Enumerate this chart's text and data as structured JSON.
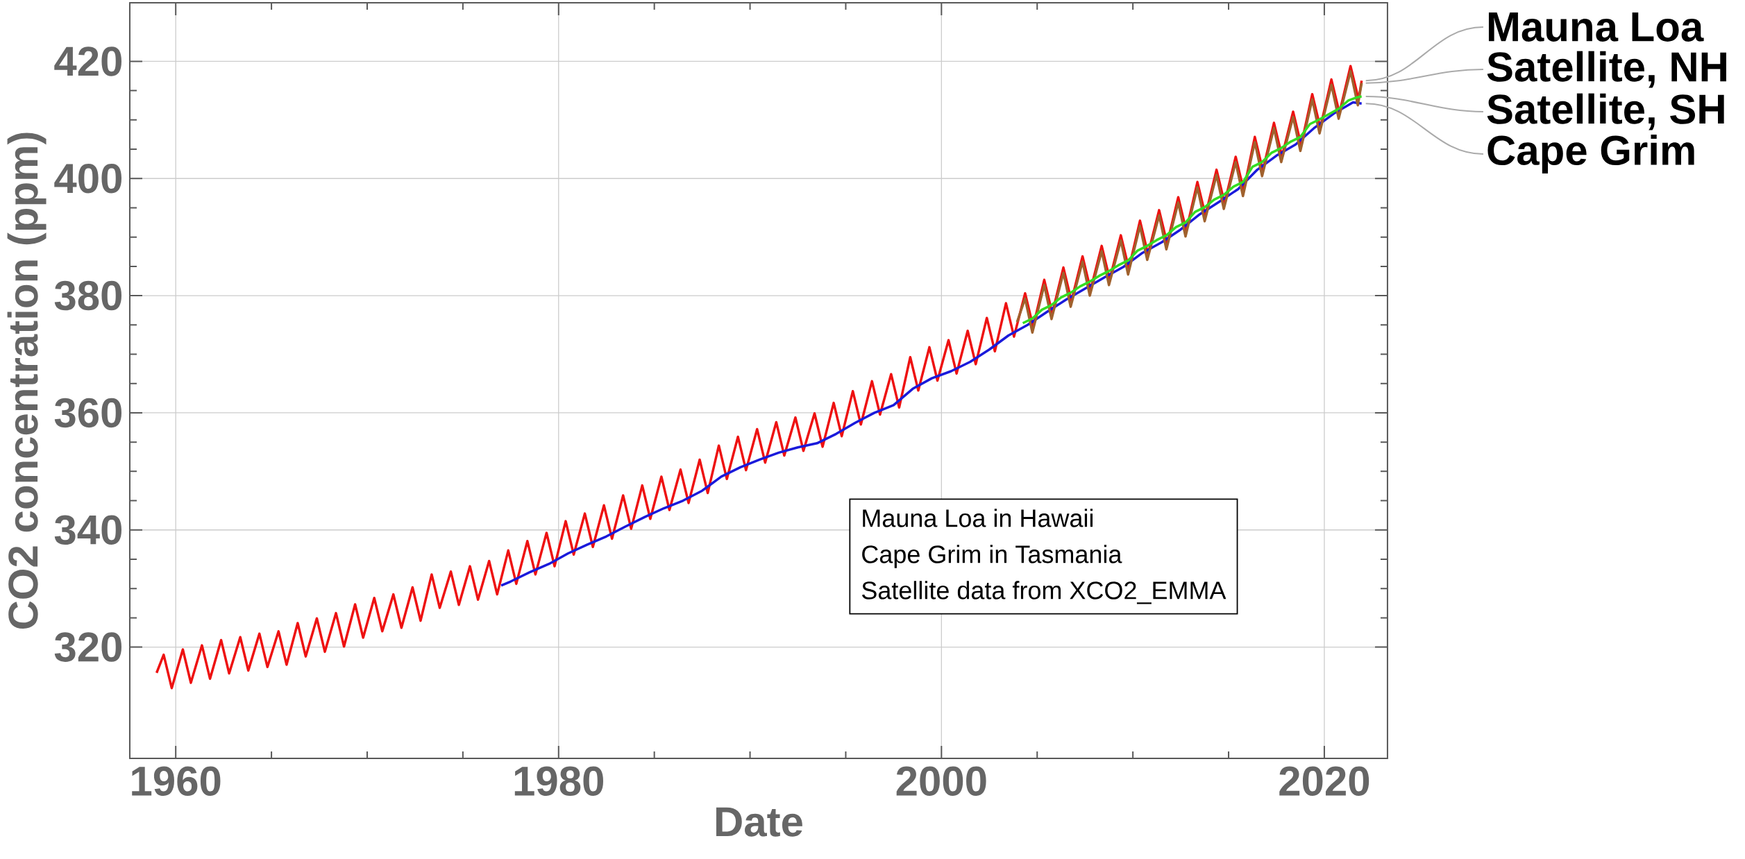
{
  "chart_data": {
    "type": "line",
    "xlabel": "Date",
    "ylabel": "CO2 concentration (ppm)",
    "xlim": [
      1957.6,
      2023.3
    ],
    "ylim": [
      301,
      430
    ],
    "xticks": [
      1960,
      1980,
      2000,
      2020
    ],
    "yticks": [
      320,
      340,
      360,
      380,
      400,
      420
    ],
    "grid": true,
    "legend": false,
    "marker": "none",
    "line_style": "solid",
    "annotations": [
      "Mauna Loa in Hawaii",
      "Cape Grim in Tasmania",
      "Satellite data from XCO2_EMMA"
    ],
    "series": [
      {
        "name": "Mauna Loa",
        "color": "#ee1111",
        "x": [
          1959.0,
          1959.37,
          1959.79,
          1960.37,
          1960.79,
          1961.37,
          1961.79,
          1962.37,
          1962.79,
          1963.37,
          1963.79,
          1964.37,
          1964.79,
          1965.37,
          1965.79,
          1966.37,
          1966.79,
          1967.37,
          1967.79,
          1968.37,
          1968.79,
          1969.37,
          1969.79,
          1970.37,
          1970.79,
          1971.37,
          1971.79,
          1972.37,
          1972.79,
          1973.37,
          1973.79,
          1974.37,
          1974.79,
          1975.37,
          1975.79,
          1976.37,
          1976.79,
          1977.37,
          1977.79,
          1978.37,
          1978.79,
          1979.37,
          1979.79,
          1980.37,
          1980.79,
          1981.37,
          1981.79,
          1982.37,
          1982.79,
          1983.37,
          1983.79,
          1984.37,
          1984.79,
          1985.37,
          1985.79,
          1986.37,
          1986.79,
          1987.37,
          1987.79,
          1988.37,
          1988.79,
          1989.37,
          1989.79,
          1990.37,
          1990.79,
          1991.37,
          1991.79,
          1992.37,
          1992.79,
          1993.37,
          1993.79,
          1994.37,
          1994.79,
          1995.37,
          1995.79,
          1996.37,
          1996.79,
          1997.37,
          1997.79,
          1998.37,
          1998.79,
          1999.37,
          1999.79,
          2000.37,
          2000.79,
          2001.37,
          2001.79,
          2002.37,
          2002.79,
          2003.37,
          2003.79,
          2004.37,
          2004.79,
          2005.37,
          2005.79,
          2006.37,
          2006.79,
          2007.37,
          2007.79,
          2008.37,
          2008.79,
          2009.37,
          2009.79,
          2010.37,
          2010.79,
          2011.37,
          2011.79,
          2012.37,
          2012.79,
          2013.37,
          2013.79,
          2014.37,
          2014.79,
          2015.37,
          2015.79,
          2016.37,
          2016.79,
          2017.37,
          2017.79,
          2018.37,
          2018.79,
          2019.37,
          2019.79,
          2020.37,
          2020.79,
          2021.37,
          2021.79,
          2021.95
        ],
        "values": [
          315.6,
          318.7,
          313.0,
          319.6,
          313.9,
          320.3,
          314.6,
          321.2,
          315.5,
          321.7,
          316.0,
          322.3,
          316.6,
          322.7,
          317.0,
          324.1,
          318.4,
          324.9,
          319.2,
          325.8,
          320.1,
          327.3,
          321.6,
          328.4,
          322.7,
          329.0,
          323.3,
          330.2,
          324.5,
          332.4,
          326.7,
          332.9,
          327.2,
          333.8,
          328.1,
          334.7,
          329.0,
          336.5,
          330.8,
          338.1,
          332.4,
          339.5,
          333.8,
          341.5,
          335.8,
          342.8,
          337.1,
          344.2,
          338.5,
          345.9,
          340.2,
          347.6,
          341.9,
          349.1,
          343.4,
          350.3,
          344.6,
          352.0,
          346.3,
          354.4,
          348.7,
          355.9,
          350.2,
          357.2,
          351.5,
          358.4,
          352.7,
          359.2,
          353.5,
          359.9,
          354.2,
          361.7,
          356.0,
          363.7,
          358.0,
          365.4,
          359.7,
          366.6,
          360.9,
          369.5,
          363.8,
          371.2,
          365.5,
          372.4,
          366.7,
          374.0,
          368.3,
          376.2,
          370.5,
          378.7,
          373.0,
          380.4,
          374.7,
          382.7,
          377.0,
          384.8,
          379.1,
          386.7,
          381.0,
          388.5,
          382.8,
          390.3,
          384.6,
          392.8,
          387.1,
          394.6,
          388.9,
          396.8,
          391.1,
          399.4,
          393.7,
          401.5,
          395.8,
          403.7,
          398.0,
          407.1,
          401.4,
          409.5,
          403.8,
          411.4,
          405.7,
          414.4,
          408.7,
          416.9,
          411.2,
          419.2,
          413.5,
          416.7
        ]
      },
      {
        "name": "Cape Grim",
        "color": "#1a1adb",
        "x": [
          1977.0,
          1977.5,
          1978.5,
          1979.5,
          1980.5,
          1981.5,
          1982.5,
          1983.5,
          1984.5,
          1985.5,
          1986.5,
          1987.5,
          1988.5,
          1989.5,
          1990.5,
          1991.5,
          1992.5,
          1993.5,
          1994.5,
          1995.5,
          1996.5,
          1997.5,
          1998.5,
          1999.5,
          2000.5,
          2001.5,
          2002.5,
          2003.5,
          2004.5,
          2005.5,
          2006.5,
          2007.5,
          2008.5,
          2009.5,
          2010.5,
          2011.5,
          2012.5,
          2013.5,
          2014.5,
          2015.5,
          2016.5,
          2017.5,
          2018.5,
          2019.5,
          2020.5,
          2021.5,
          2021.95
        ],
        "values": [
          330.5,
          331.2,
          332.8,
          334.2,
          336.0,
          337.5,
          338.9,
          340.6,
          342.2,
          343.7,
          345.0,
          346.7,
          349.1,
          350.7,
          352.0,
          353.2,
          354.1,
          354.8,
          356.4,
          358.3,
          360.0,
          361.3,
          364.1,
          365.9,
          367.1,
          368.7,
          370.8,
          373.2,
          375.0,
          377.2,
          379.3,
          381.2,
          383.1,
          384.9,
          387.3,
          389.1,
          391.3,
          393.9,
          396.0,
          398.2,
          401.5,
          403.9,
          405.8,
          408.7,
          411.1,
          413.0,
          412.8
        ]
      },
      {
        "name": "Satellite, NH",
        "color": "#a0612d",
        "x": [
          2003.95,
          2004.37,
          2004.75,
          2005.37,
          2005.75,
          2006.37,
          2006.75,
          2007.37,
          2007.75,
          2008.37,
          2008.75,
          2009.37,
          2009.75,
          2010.37,
          2010.75,
          2011.37,
          2011.75,
          2012.37,
          2012.75,
          2013.37,
          2013.75,
          2014.37,
          2014.75,
          2015.37,
          2015.75,
          2016.37,
          2016.75,
          2017.37,
          2017.75,
          2018.37,
          2018.75,
          2019.37,
          2019.75,
          2020.37,
          2020.75,
          2021.37,
          2021.75,
          2021.95
        ],
        "values": [
          375.5,
          379.5,
          373.7,
          381.8,
          376.0,
          383.9,
          378.1,
          385.8,
          380.0,
          387.6,
          381.8,
          389.4,
          383.6,
          391.9,
          386.1,
          393.7,
          387.9,
          395.9,
          390.1,
          398.5,
          392.7,
          400.6,
          394.8,
          402.8,
          397.0,
          406.2,
          400.4,
          408.6,
          402.8,
          410.5,
          404.7,
          413.5,
          407.7,
          416.0,
          410.2,
          418.3,
          412.5,
          416.3
        ]
      },
      {
        "name": "Satellite, SH",
        "color": "#33dd22",
        "x": [
          2004.25,
          2004.75,
          2005.25,
          2005.75,
          2006.25,
          2006.75,
          2007.25,
          2007.75,
          2008.25,
          2008.75,
          2009.25,
          2009.75,
          2010.25,
          2010.75,
          2011.25,
          2011.75,
          2012.25,
          2012.75,
          2013.25,
          2013.75,
          2014.25,
          2014.75,
          2015.25,
          2015.75,
          2016.25,
          2016.75,
          2017.25,
          2017.75,
          2018.25,
          2018.75,
          2019.25,
          2019.75,
          2020.25,
          2020.75,
          2021.25,
          2021.75,
          2021.95
        ],
        "values": [
          375.3,
          376.1,
          377.6,
          378.4,
          379.7,
          380.5,
          381.6,
          382.4,
          383.4,
          384.2,
          385.2,
          386.0,
          387.7,
          388.5,
          389.5,
          390.3,
          391.7,
          392.5,
          394.3,
          395.1,
          396.4,
          397.2,
          398.6,
          399.4,
          402.0,
          402.8,
          404.4,
          405.2,
          406.3,
          407.1,
          409.3,
          410.1,
          411.0,
          411.9,
          413.3,
          413.9,
          414.0
        ]
      }
    ]
  }
}
